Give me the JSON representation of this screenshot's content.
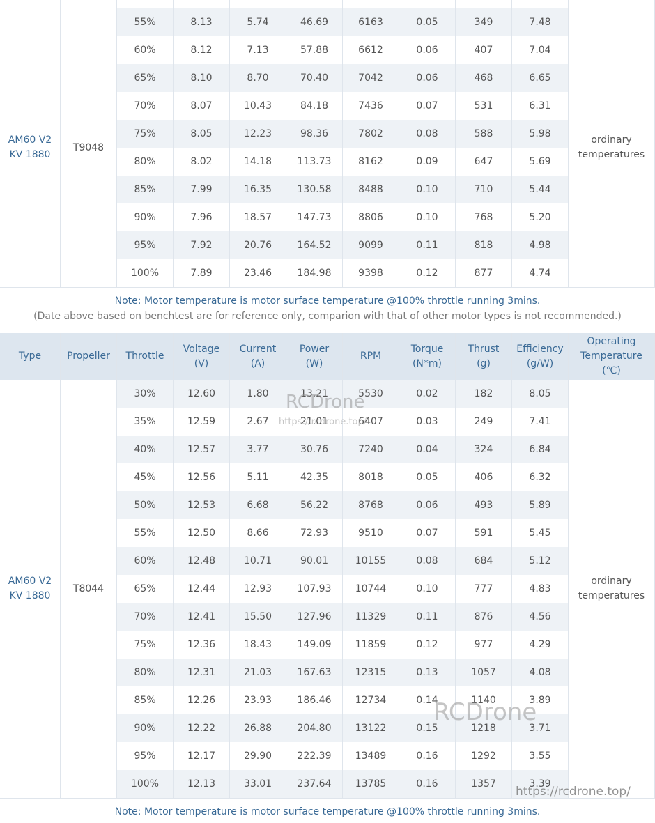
{
  "sections": [
    {
      "type": [
        "AM60 V2",
        "KV 1880"
      ],
      "propeller": "T9048",
      "temperature": "ordinary temperatures",
      "rows": [
        [
          "55%",
          "8.13",
          "5.74",
          "46.69",
          "6163",
          "0.05",
          "349",
          "7.48"
        ],
        [
          "60%",
          "8.12",
          "7.13",
          "57.88",
          "6612",
          "0.06",
          "407",
          "7.04"
        ],
        [
          "65%",
          "8.10",
          "8.70",
          "70.40",
          "7042",
          "0.06",
          "468",
          "6.65"
        ],
        [
          "70%",
          "8.07",
          "10.43",
          "84.18",
          "7436",
          "0.07",
          "531",
          "6.31"
        ],
        [
          "75%",
          "8.05",
          "12.23",
          "98.36",
          "7802",
          "0.08",
          "588",
          "5.98"
        ],
        [
          "80%",
          "8.02",
          "14.18",
          "113.73",
          "8162",
          "0.09",
          "647",
          "5.69"
        ],
        [
          "85%",
          "7.99",
          "16.35",
          "130.58",
          "8488",
          "0.10",
          "710",
          "5.44"
        ],
        [
          "90%",
          "7.96",
          "18.57",
          "147.73",
          "8806",
          "0.10",
          "768",
          "5.20"
        ],
        [
          "95%",
          "7.92",
          "20.76",
          "164.52",
          "9099",
          "0.11",
          "818",
          "4.98"
        ],
        [
          "100%",
          "7.89",
          "23.46",
          "184.98",
          "9398",
          "0.12",
          "877",
          "4.74"
        ]
      ],
      "notes": [
        "Note: Motor temperature is motor surface temperature @100% throttle running 3mins.",
        "(Date above based on benchtest are for reference only, comparion with that of other motor types is not recommended.)"
      ]
    },
    {
      "header": [
        [
          "Type"
        ],
        [
          "Propeller"
        ],
        [
          "Throttle"
        ],
        [
          "Voltage",
          "(V)"
        ],
        [
          "Current",
          "(A)"
        ],
        [
          "Power",
          "(W)"
        ],
        [
          "RPM"
        ],
        [
          "Torque",
          "(N*m)"
        ],
        [
          "Thrust",
          "(g)"
        ],
        [
          "Efficiency",
          "(g/W)"
        ],
        [
          "Operating",
          "Temperature",
          "(℃)"
        ]
      ],
      "type": [
        "AM60 V2",
        "KV 1880"
      ],
      "propeller": "T8044",
      "temperature": "ordinary temperatures",
      "rows": [
        [
          "30%",
          "12.60",
          "1.80",
          "13.21",
          "5530",
          "0.02",
          "182",
          "8.05"
        ],
        [
          "35%",
          "12.59",
          "2.67",
          "21.01",
          "6407",
          "0.03",
          "249",
          "7.41"
        ],
        [
          "40%",
          "12.57",
          "3.77",
          "30.76",
          "7240",
          "0.04",
          "324",
          "6.84"
        ],
        [
          "45%",
          "12.56",
          "5.11",
          "42.35",
          "8018",
          "0.05",
          "406",
          "6.32"
        ],
        [
          "50%",
          "12.53",
          "6.68",
          "56.22",
          "8768",
          "0.06",
          "493",
          "5.89"
        ],
        [
          "55%",
          "12.50",
          "8.66",
          "72.93",
          "9510",
          "0.07",
          "591",
          "5.45"
        ],
        [
          "60%",
          "12.48",
          "10.71",
          "90.01",
          "10155",
          "0.08",
          "684",
          "5.12"
        ],
        [
          "65%",
          "12.44",
          "12.93",
          "107.93",
          "10744",
          "0.10",
          "777",
          "4.83"
        ],
        [
          "70%",
          "12.41",
          "15.50",
          "127.96",
          "11329",
          "0.11",
          "876",
          "4.56"
        ],
        [
          "75%",
          "12.36",
          "18.43",
          "149.09",
          "11859",
          "0.12",
          "977",
          "4.29"
        ],
        [
          "80%",
          "12.31",
          "21.03",
          "167.63",
          "12315",
          "0.13",
          "1057",
          "4.08"
        ],
        [
          "85%",
          "12.26",
          "23.93",
          "186.46",
          "12734",
          "0.14",
          "1140",
          "3.89"
        ],
        [
          "90%",
          "12.22",
          "26.88",
          "204.80",
          "13122",
          "0.15",
          "1218",
          "3.71"
        ],
        [
          "95%",
          "12.17",
          "29.90",
          "222.39",
          "13489",
          "0.16",
          "1292",
          "3.55"
        ],
        [
          "100%",
          "12.13",
          "33.01",
          "237.64",
          "13785",
          "0.16",
          "1357",
          "3.39"
        ]
      ],
      "notes": [
        "Note: Motor temperature is motor surface temperature @100% throttle running 3mins."
      ]
    }
  ],
  "watermarks": [
    "RCDrone",
    "https://rcdrone.top/",
    "RCDrone",
    "https://rcdrone.top/"
  ]
}
